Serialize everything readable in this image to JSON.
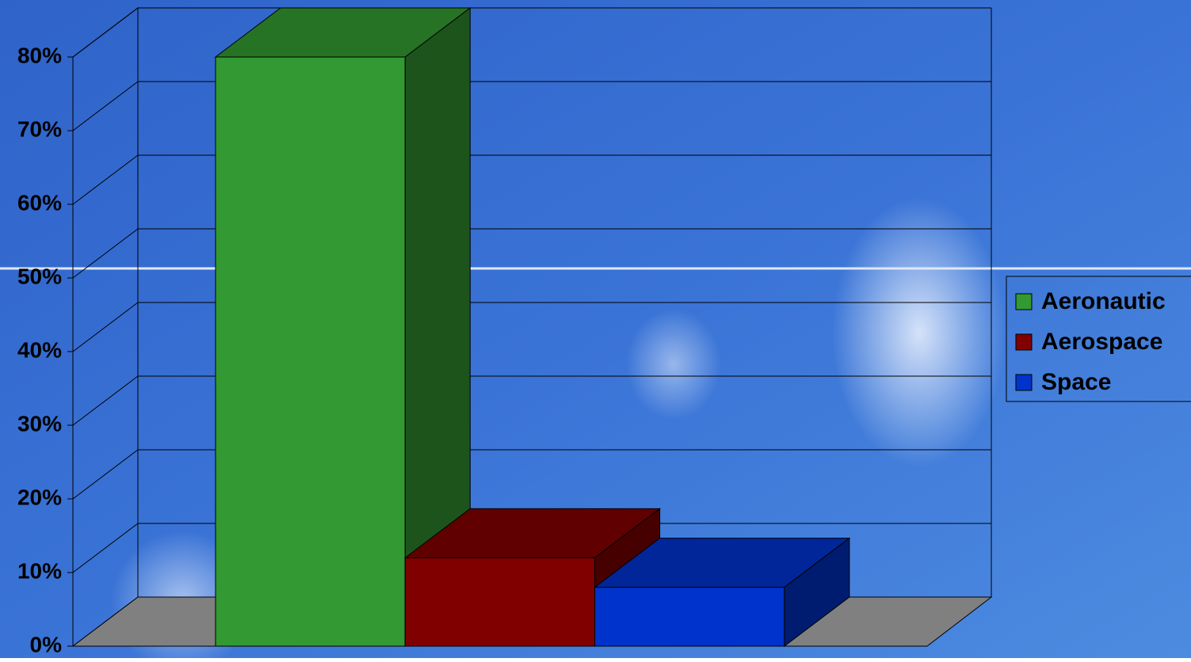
{
  "chart_data": {
    "type": "bar3d",
    "series": [
      {
        "name": "Aeronautic",
        "color": "#339933",
        "values": [
          80
        ]
      },
      {
        "name": "Aerospace",
        "color": "#800000",
        "values": [
          12
        ]
      },
      {
        "name": "Space",
        "color": "#0033cc",
        "values": [
          8
        ]
      }
    ],
    "ylim": [
      0,
      80
    ],
    "yticks": [
      {
        "value": 0,
        "label": "0%"
      },
      {
        "value": 10,
        "label": "10%"
      },
      {
        "value": 20,
        "label": "20%"
      },
      {
        "value": 30,
        "label": "30%"
      },
      {
        "value": 40,
        "label": "40%"
      },
      {
        "value": 50,
        "label": "50%"
      },
      {
        "value": 60,
        "label": "60%"
      },
      {
        "value": 70,
        "label": "70%"
      },
      {
        "value": 80,
        "label": "80%"
      }
    ],
    "grid": true,
    "legend": "right"
  }
}
